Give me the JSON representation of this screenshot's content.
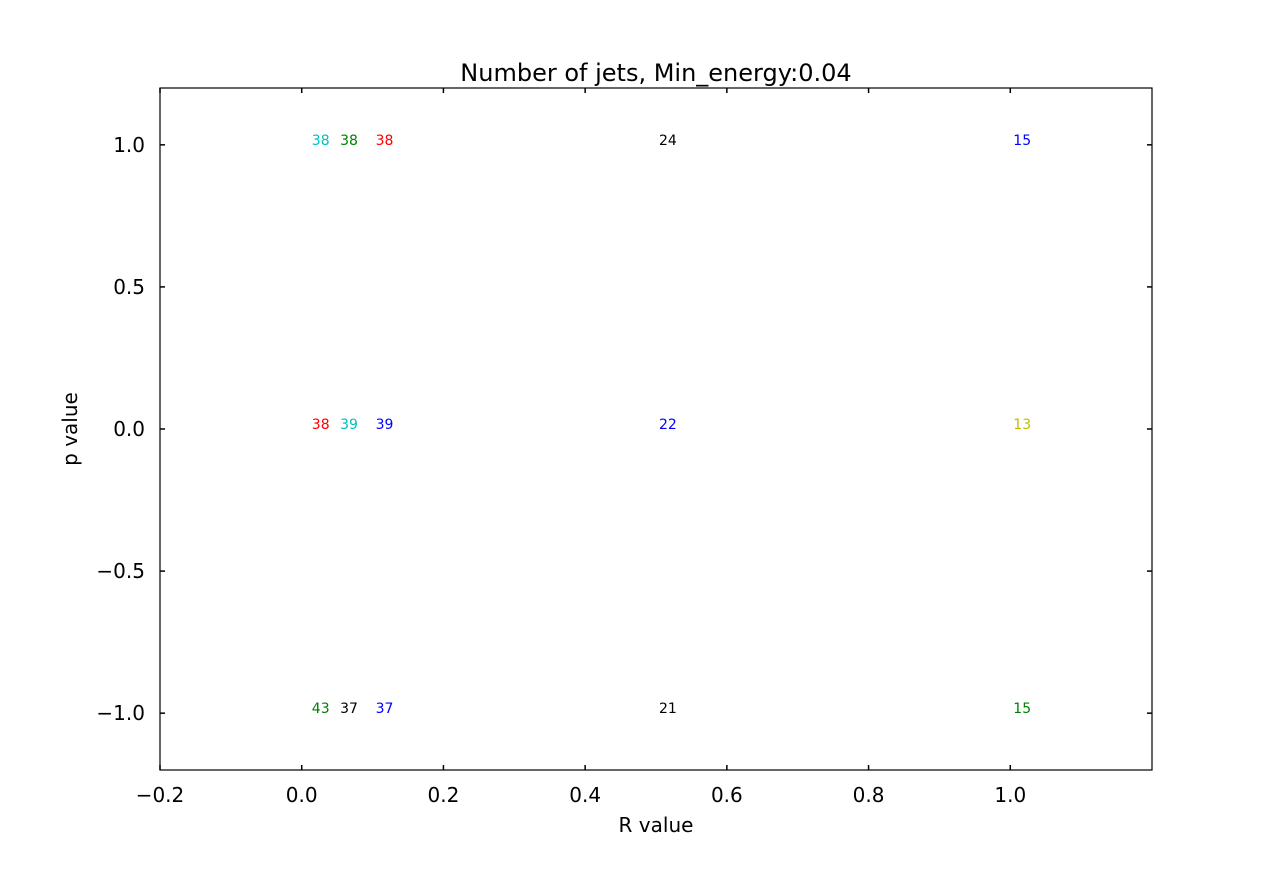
{
  "chart_data": {
    "type": "scatter",
    "title": "Number of jets, Min_energy:0.04",
    "xlabel": "R value",
    "ylabel": "p value",
    "xlim": [
      -0.2,
      1.2
    ],
    "ylim": [
      -1.2,
      1.2
    ],
    "x_ticks": [
      -0.2,
      0.0,
      0.2,
      0.4,
      0.6,
      0.8,
      1.0
    ],
    "x_tick_labels": [
      "−0.2",
      "0.0",
      "0.2",
      "0.4",
      "0.6",
      "0.8",
      "1.0"
    ],
    "y_ticks": [
      -1.0,
      -0.5,
      0.0,
      0.5,
      1.0
    ],
    "y_tick_labels": [
      "−1.0",
      "−0.5",
      "0.0",
      "0.5",
      "1.0"
    ],
    "grid": false,
    "points": [
      {
        "x": 0.01,
        "y": 1.0,
        "label": "38",
        "color": "#00bfbf"
      },
      {
        "x": 0.05,
        "y": 1.0,
        "label": "38",
        "color": "#008000"
      },
      {
        "x": 0.1,
        "y": 1.0,
        "label": "38",
        "color": "#ff0000"
      },
      {
        "x": 0.5,
        "y": 1.0,
        "label": "24",
        "color": "#000000"
      },
      {
        "x": 1.0,
        "y": 1.0,
        "label": "15",
        "color": "#0000ff"
      },
      {
        "x": 0.01,
        "y": 0.0,
        "label": "38",
        "color": "#ff0000"
      },
      {
        "x": 0.05,
        "y": 0.0,
        "label": "39",
        "color": "#00bfbf"
      },
      {
        "x": 0.1,
        "y": 0.0,
        "label": "39",
        "color": "#0000ff"
      },
      {
        "x": 0.5,
        "y": 0.0,
        "label": "22",
        "color": "#0000ff"
      },
      {
        "x": 1.0,
        "y": 0.0,
        "label": "13",
        "color": "#bfbf00"
      },
      {
        "x": 0.01,
        "y": -1.0,
        "label": "43",
        "color": "#008000"
      },
      {
        "x": 0.05,
        "y": -1.0,
        "label": "37",
        "color": "#000000"
      },
      {
        "x": 0.1,
        "y": -1.0,
        "label": "37",
        "color": "#0000ff"
      },
      {
        "x": 0.5,
        "y": -1.0,
        "label": "21",
        "color": "#000000"
      },
      {
        "x": 1.0,
        "y": -1.0,
        "label": "15",
        "color": "#008000"
      }
    ]
  }
}
